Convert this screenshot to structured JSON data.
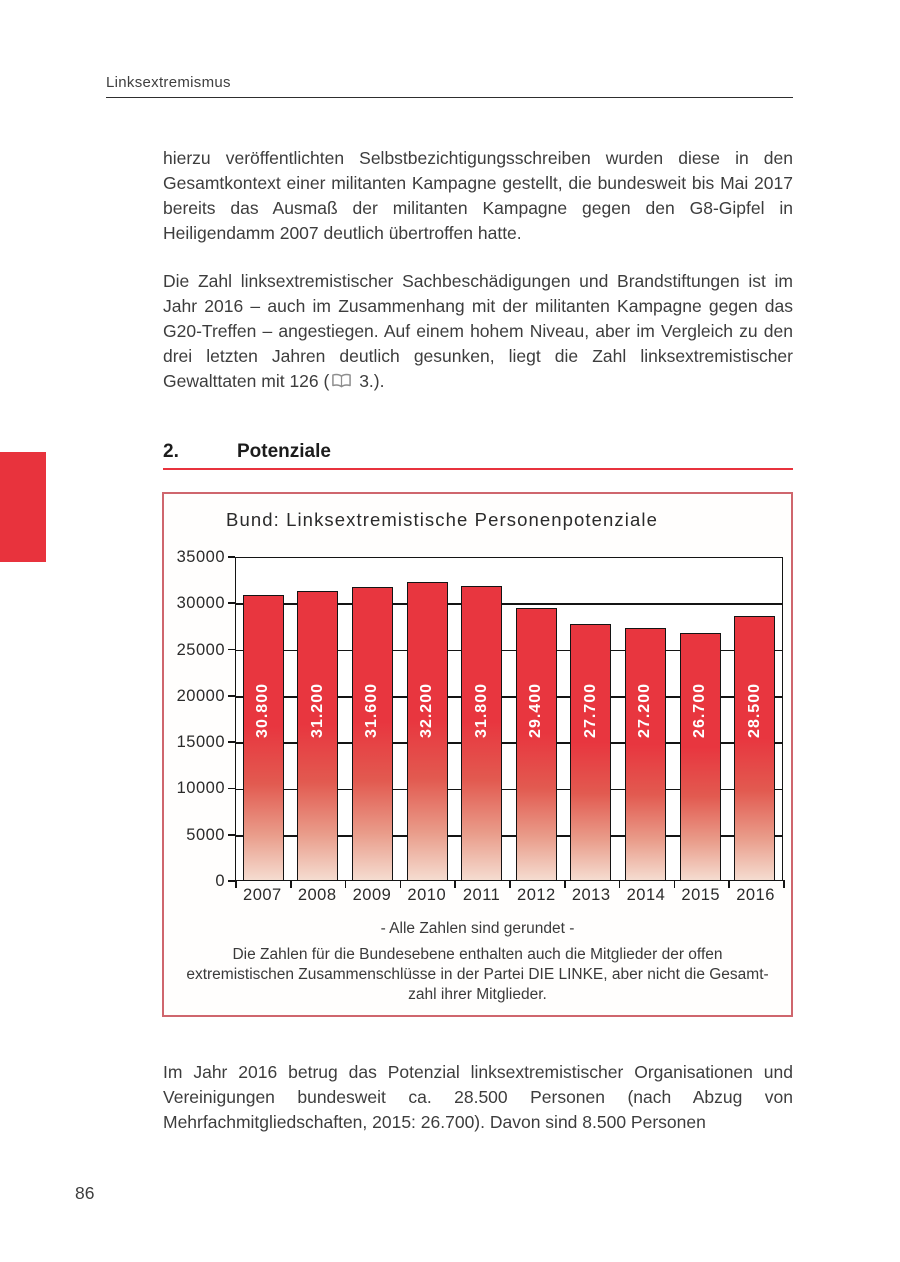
{
  "page": {
    "running_header": "Linksextremismus",
    "page_number": "86"
  },
  "section": {
    "number": "2.",
    "title": "Potenziale"
  },
  "body": {
    "paragraph1": "hierzu veröffentlichten Selbstbezichtigungsschreiben wurden diese in den Gesamtkontext einer militanten Kampagne gestellt, die bundesweit bis Mai 2017 bereits das Ausmaß der militanten Kampagne gegen den G8-Gipfel in Heiligendamm 2007 deutlich übertroffen hatte.",
    "paragraph2_part1": "Die Zahl linksextremistischer Sachbeschädigungen und Brandstiftungen ist im Jahr 2016 – auch im Zusammenhang mit der militanten Kampagne gegen das G20-Treffen – angestiegen. Auf einem hohem Niveau, aber im Vergleich zu den drei letzten Jahren deutlich gesunken, liegt die Zahl linksextremistischer Gewalttaten mit 126 (",
    "paragraph2_icon": "open-book",
    "paragraph2_part2": "3.).",
    "paragraph3": "Im Jahr 2016 betrug das Potenzial linksextremistischer Organisationen und Vereinigungen bundesweit ca. 28.500 Personen (nach Abzug von Mehrfachmitgliedschaften, 2015: 26.700). Davon sind 8.500 Personen"
  },
  "chart_data": {
    "type": "bar",
    "title": "Bund: Linksextremistische Personenpotenziale",
    "categories": [
      "2007",
      "2008",
      "2009",
      "2010",
      "2011",
      "2012",
      "2013",
      "2014",
      "2015",
      "2016"
    ],
    "values": [
      30800,
      31200,
      31600,
      32200,
      31800,
      29400,
      27700,
      27200,
      26700,
      28500
    ],
    "bar_labels": [
      "30.800",
      "31.200",
      "31.600",
      "32.200",
      "31.800",
      "29.400",
      "27.700",
      "27.200",
      "26.700",
      "28.500"
    ],
    "xlabel": "",
    "ylabel": "",
    "ylim": [
      0,
      35000
    ],
    "ytick_interval": 5000,
    "yticks": [
      35000,
      30000,
      25000,
      20000,
      15000,
      10000,
      5000,
      0
    ],
    "grid": true,
    "legend_position": "none",
    "bar_color": "#e8363f",
    "footnote1": "- Alle Zahlen sind gerundet -",
    "footnote2_lines": [
      "Die Zahlen für die Bundesebene enthalten auch die Mitglieder der offen",
      "extremistischen Zusammenschlüsse in der Partei DIE LINKE, aber nicht die Gesamt-",
      "zahl ihrer Mitglieder."
    ]
  },
  "colors": {
    "accent_red": "#e8333d",
    "chart_box_border": "#cf666d",
    "body_text": "#3d3d3d"
  }
}
